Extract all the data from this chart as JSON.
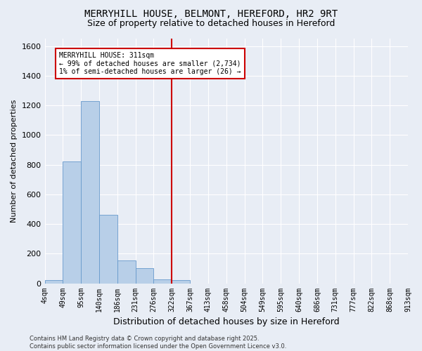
{
  "title": "MERRYHILL HOUSE, BELMONT, HEREFORD, HR2 9RT",
  "subtitle": "Size of property relative to detached houses in Hereford",
  "xlabel": "Distribution of detached houses by size in Hereford",
  "ylabel": "Number of detached properties",
  "footer": "Contains HM Land Registry data © Crown copyright and database right 2025.\nContains public sector information licensed under the Open Government Licence v3.0.",
  "tick_labels": [
    "4sqm",
    "49sqm",
    "95sqm",
    "140sqm",
    "186sqm",
    "231sqm",
    "276sqm",
    "322sqm",
    "367sqm",
    "413sqm",
    "458sqm",
    "504sqm",
    "549sqm",
    "595sqm",
    "640sqm",
    "686sqm",
    "731sqm",
    "777sqm",
    "822sqm",
    "868sqm",
    "913sqm"
  ],
  "bar_values": [
    20,
    820,
    1230,
    460,
    155,
    100,
    25,
    20,
    0,
    0,
    0,
    0,
    0,
    0,
    0,
    0,
    0,
    0,
    0,
    0
  ],
  "bar_color": "#b8cfe8",
  "bar_edge_color": "#6699cc",
  "vline_color": "#cc0000",
  "vline_x": 6.5,
  "annotation_text": "MERRYHILL HOUSE: 311sqm\n← 99% of detached houses are smaller (2,734)\n1% of semi-detached houses are larger (26) →",
  "annotation_box_color": "#cc0000",
  "ylim": [
    0,
    1650
  ],
  "yticks": [
    0,
    200,
    400,
    600,
    800,
    1000,
    1200,
    1400,
    1600
  ],
  "bg_color": "#e8edf5",
  "grid_color": "#ffffff",
  "title_fontsize": 10,
  "subtitle_fontsize": 9,
  "axis_label_fontsize": 8,
  "tick_fontsize": 7,
  "footer_fontsize": 6
}
